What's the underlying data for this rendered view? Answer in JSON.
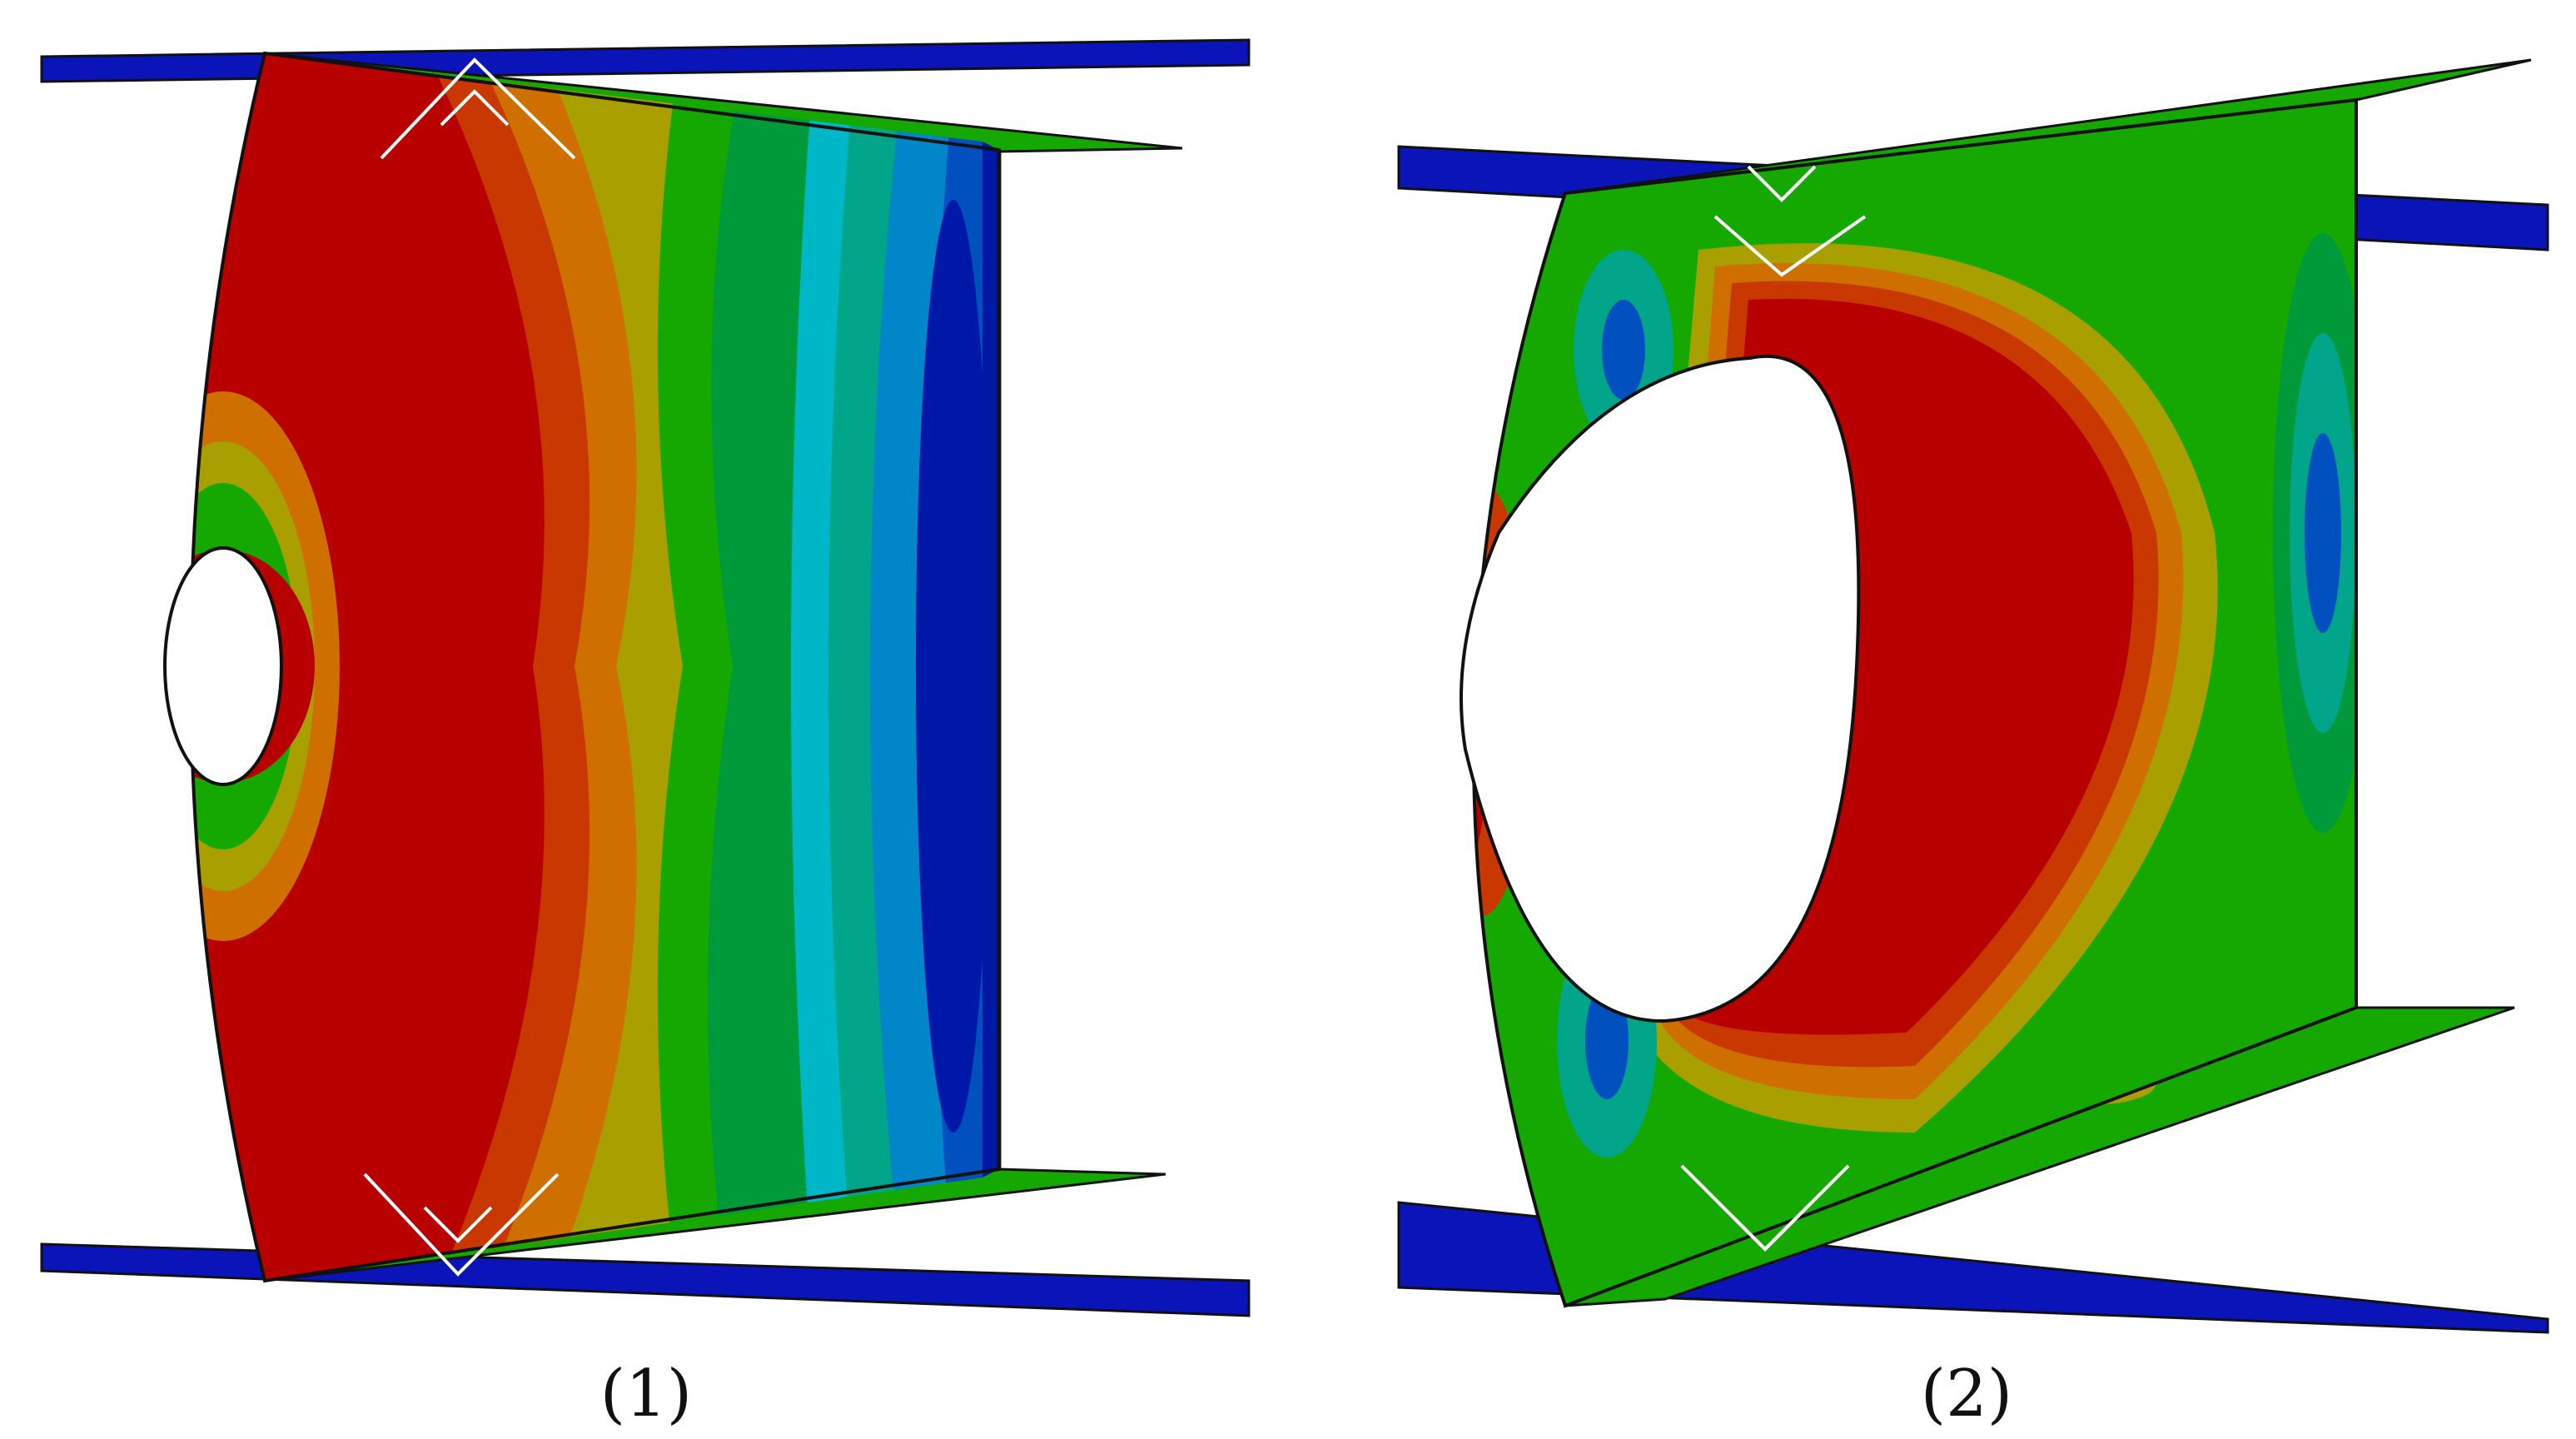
{
  "figure": {
    "panels": [
      {
        "id": "panel-1",
        "caption": "(1)"
      },
      {
        "id": "panel-2",
        "caption": "(2)"
      }
    ],
    "palette": {
      "red": "#b80000",
      "red_orange": "#c83800",
      "orange": "#cf6f00",
      "olive": "#a9a000",
      "yellow_green": "#7fbf00",
      "green": "#14a800",
      "green_dark": "#009a3a",
      "teal": "#00a58a",
      "cyan": "#00b7c8",
      "light_blue": "#0086c9",
      "blue": "#0050c0",
      "dark_blue": "#0018a8",
      "flange_blue": "#0a14b8",
      "outline": "#111111",
      "background": "#ffffff"
    }
  }
}
